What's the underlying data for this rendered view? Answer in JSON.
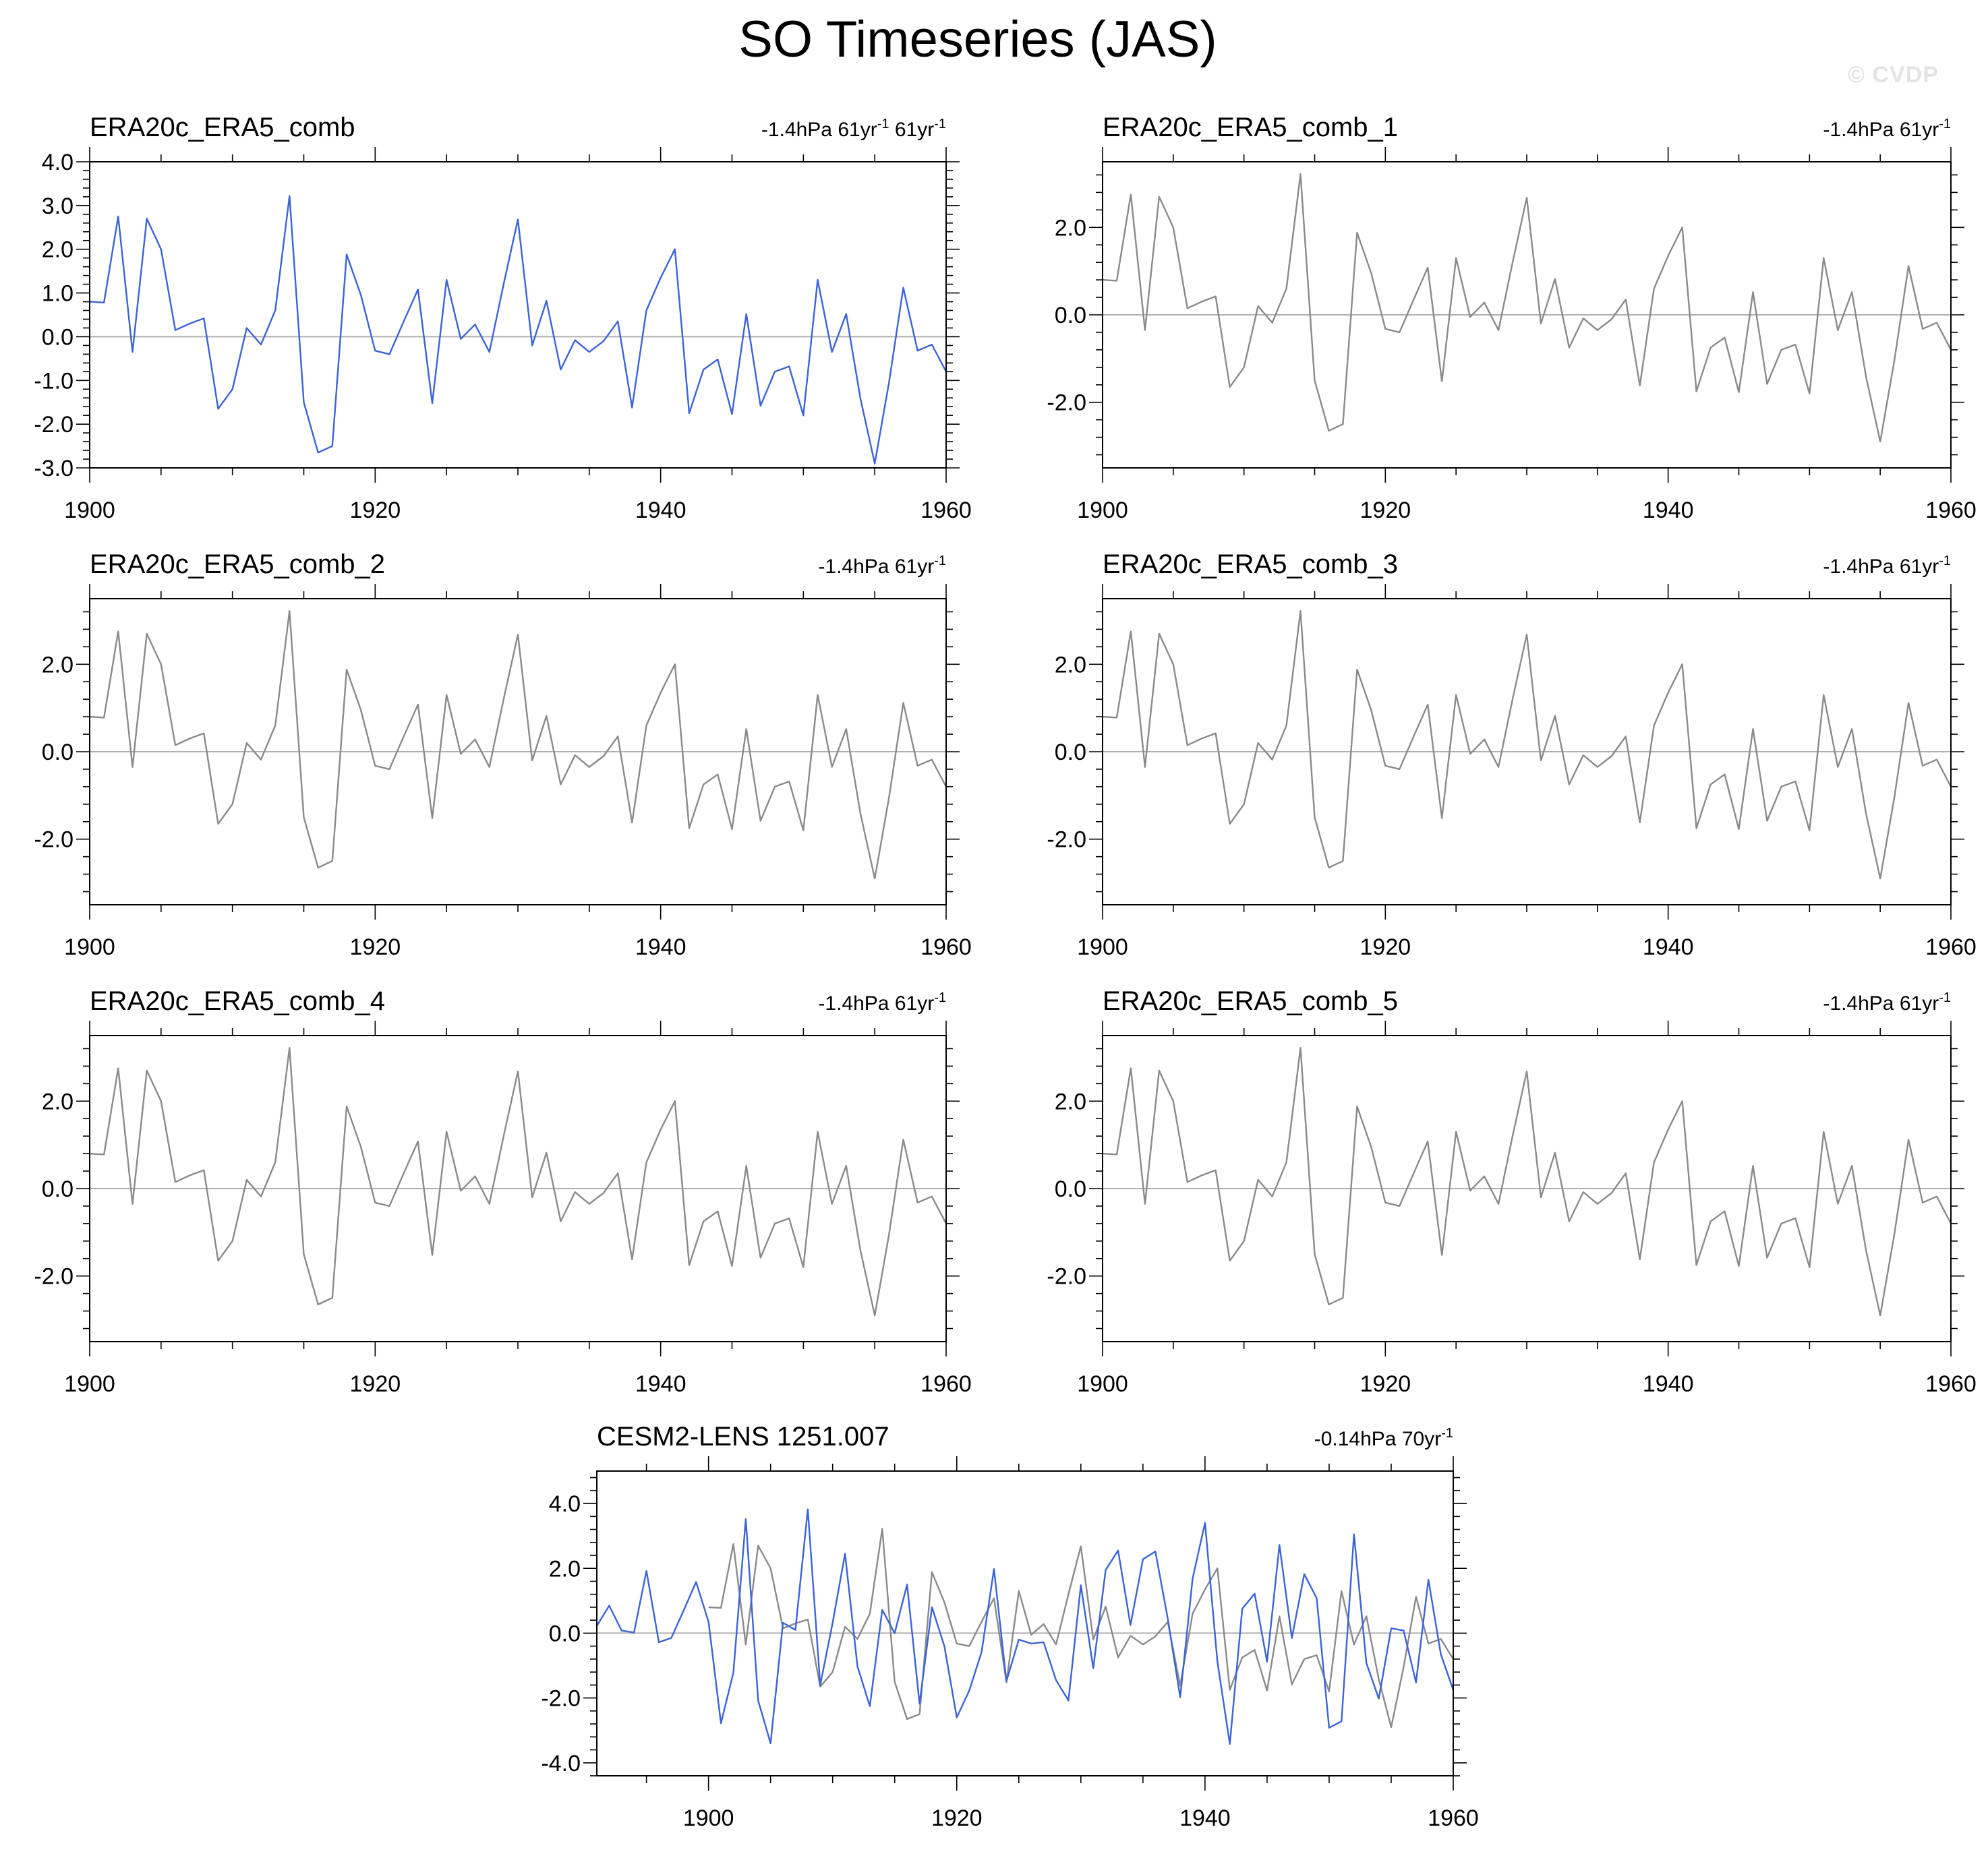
{
  "title": "SO Timeseries (JAS)",
  "watermark": "© CVDP",
  "colors": {
    "obs_line": "#3b63d6",
    "member_line": "#8a8a8a",
    "axis": "#000000",
    "zero_line": "#b0b0b0"
  },
  "obs_series": [
    0.8,
    0.78,
    2.75,
    -0.35,
    2.7,
    2.0,
    0.15,
    0.3,
    0.42,
    -1.65,
    -1.2,
    0.2,
    -0.18,
    0.6,
    3.22,
    -1.5,
    -2.65,
    -2.5,
    1.88,
    0.95,
    -0.32,
    -0.4,
    0.35,
    1.08,
    -1.52,
    1.3,
    -0.05,
    0.28,
    -0.35,
    1.2,
    2.68,
    -0.2,
    0.82,
    -0.75,
    -0.08,
    -0.35,
    -0.1,
    0.35,
    -1.62,
    0.6,
    1.35,
    2.0,
    -1.75,
    -0.75,
    -0.52,
    -1.77,
    0.52,
    -1.58,
    -0.8,
    -0.68,
    -1.8,
    1.3,
    -0.35,
    0.52,
    -1.42,
    -2.9,
    -1.05,
    1.12,
    -0.32,
    -0.18,
    -0.8
  ],
  "cesm_series": [
    0.22,
    0.85,
    0.08,
    0.02,
    1.92,
    -0.28,
    -0.15,
    0.7,
    1.58,
    0.35,
    -2.78,
    -1.22,
    3.52,
    -2.08,
    -3.4,
    0.32,
    0.1,
    3.82,
    -1.6,
    0.32,
    2.45,
    -1.02,
    -2.25,
    0.72,
    0.0,
    1.5,
    -2.18,
    0.8,
    -0.4,
    -2.6,
    -1.78,
    -0.58,
    1.98,
    -1.48,
    -0.2,
    -0.32,
    -0.28,
    -1.45,
    -2.08,
    1.48,
    -1.08,
    1.95,
    2.55,
    0.25,
    2.28,
    2.52,
    0.45,
    -1.98,
    1.68,
    3.4,
    -0.88,
    -3.42,
    0.75,
    1.22,
    -0.88,
    2.72,
    -0.15,
    1.82,
    1.08,
    -2.92,
    -2.72,
    3.05,
    -0.92,
    -2.02,
    0.15,
    0.08,
    -1.52,
    1.65,
    -0.65,
    -1.75
  ],
  "chart_data": [
    {
      "type": "line",
      "title": "ERA20c_ERA5_comb",
      "annotation": "-1.4hPa 61yr-1 61yr-1",
      "x_start": 1900,
      "xlim": [
        1900,
        1960
      ],
      "ylim": [
        -3.0,
        4.0
      ],
      "x_ticks": [
        "1900",
        "1920",
        "1940",
        "1960"
      ],
      "y_ticks": [
        "4.0",
        "3.0",
        "2.0",
        "1.0",
        "0.0",
        "-1.0",
        "-2.0",
        "-3.0"
      ],
      "series": [
        {
          "source": "obs_series",
          "color": "#3b63d6"
        }
      ]
    },
    {
      "type": "line",
      "title": "ERA20c_ERA5_comb_1",
      "annotation": "-1.4hPa 61yr-1",
      "x_start": 1900,
      "xlim": [
        1900,
        1960
      ],
      "ylim": [
        -3.5,
        3.5
      ],
      "x_ticks": [
        "1900",
        "1920",
        "1940",
        "1960"
      ],
      "y_ticks": [
        "2.0",
        "0.0",
        "-2.0"
      ],
      "series": [
        {
          "source": "obs_series",
          "color": "#8a8a8a"
        }
      ]
    },
    {
      "type": "line",
      "title": "ERA20c_ERA5_comb_2",
      "annotation": "-1.4hPa 61yr-1",
      "x_start": 1900,
      "xlim": [
        1900,
        1960
      ],
      "ylim": [
        -3.5,
        3.5
      ],
      "x_ticks": [
        "1900",
        "1920",
        "1940",
        "1960"
      ],
      "y_ticks": [
        "2.0",
        "0.0",
        "-2.0"
      ],
      "series": [
        {
          "source": "obs_series",
          "color": "#8a8a8a"
        }
      ]
    },
    {
      "type": "line",
      "title": "ERA20c_ERA5_comb_3",
      "annotation": "-1.4hPa 61yr-1",
      "x_start": 1900,
      "xlim": [
        1900,
        1960
      ],
      "ylim": [
        -3.5,
        3.5
      ],
      "x_ticks": [
        "1900",
        "1920",
        "1940",
        "1960"
      ],
      "y_ticks": [
        "2.0",
        "0.0",
        "-2.0"
      ],
      "series": [
        {
          "source": "obs_series",
          "color": "#8a8a8a"
        }
      ]
    },
    {
      "type": "line",
      "title": "ERA20c_ERA5_comb_4",
      "annotation": "-1.4hPa 61yr-1",
      "x_start": 1900,
      "xlim": [
        1900,
        1960
      ],
      "ylim": [
        -3.5,
        3.5
      ],
      "x_ticks": [
        "1900",
        "1920",
        "1940",
        "1960"
      ],
      "y_ticks": [
        "2.0",
        "0.0",
        "-2.0"
      ],
      "series": [
        {
          "source": "obs_series",
          "color": "#8a8a8a"
        }
      ]
    },
    {
      "type": "line",
      "title": "ERA20c_ERA5_comb_5",
      "annotation": "-1.4hPa 61yr-1",
      "x_start": 1900,
      "xlim": [
        1900,
        1960
      ],
      "ylim": [
        -3.5,
        3.5
      ],
      "x_ticks": [
        "1900",
        "1920",
        "1940",
        "1960"
      ],
      "y_ticks": [
        "2.0",
        "0.0",
        "-2.0"
      ],
      "series": [
        {
          "source": "obs_series",
          "color": "#8a8a8a"
        }
      ]
    },
    {
      "type": "line",
      "title": "CESM2-LENS 1251.007",
      "annotation": "-0.14hPa 70yr-1",
      "x_start": 1891,
      "xlim": [
        1891,
        1960
      ],
      "ylim": [
        -4.4,
        5.0
      ],
      "x_ticks": [
        "1900",
        "1920",
        "1940",
        "1960"
      ],
      "y_ticks": [
        "4.0",
        "2.0",
        "0.0",
        "-2.0",
        "-4.0"
      ],
      "series": [
        {
          "source": "obs_series",
          "x_start": 1900,
          "color": "#8a8a8a"
        },
        {
          "source": "cesm_series",
          "x_start": 1891,
          "color": "#3b63d6"
        }
      ]
    }
  ]
}
